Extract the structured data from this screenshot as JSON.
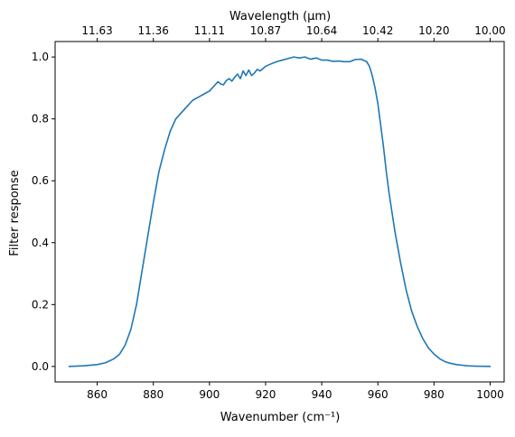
{
  "chart_data": {
    "type": "line",
    "title": "",
    "xlabel": "Wavenumber (cm⁻¹)",
    "ylabel": "Filter response",
    "top_axis_label": "Wavelength (μm)",
    "xlim": [
      845,
      1005
    ],
    "ylim": [
      -0.05,
      1.05
    ],
    "x_ticks": [
      860,
      880,
      900,
      920,
      940,
      960,
      980,
      1000
    ],
    "y_ticks": [
      0.0,
      0.2,
      0.4,
      0.6,
      0.8,
      1.0
    ],
    "top_ticks": [
      {
        "wavenumber": 860,
        "label": "11.63"
      },
      {
        "wavenumber": 880,
        "label": "11.36"
      },
      {
        "wavenumber": 900,
        "label": "11.11"
      },
      {
        "wavenumber": 920,
        "label": "10.87"
      },
      {
        "wavenumber": 940,
        "label": "10.64"
      },
      {
        "wavenumber": 960,
        "label": "10.42"
      },
      {
        "wavenumber": 980,
        "label": "10.20"
      },
      {
        "wavenumber": 1000,
        "label": "10.00"
      }
    ],
    "grid": false,
    "series": [
      {
        "color": "#1f77b4",
        "x": [
          850,
          855,
          860,
          863,
          866,
          868,
          870,
          872,
          874,
          876,
          878,
          880,
          882,
          884,
          886,
          888,
          890,
          892,
          894,
          896,
          898,
          900,
          902,
          903,
          904,
          905,
          906,
          907,
          908,
          909,
          910,
          911,
          912,
          913,
          914,
          915,
          916,
          917,
          918,
          919,
          920,
          922,
          924,
          926,
          928,
          930,
          932,
          934,
          936,
          938,
          940,
          942,
          944,
          946,
          948,
          950,
          952,
          954,
          956,
          957,
          958,
          959,
          960,
          961,
          962,
          963,
          964,
          966,
          968,
          970,
          972,
          974,
          976,
          978,
          980,
          982,
          984,
          986,
          988,
          990,
          992,
          995,
          1000
        ],
        "y": [
          0.0,
          0.002,
          0.006,
          0.012,
          0.025,
          0.04,
          0.07,
          0.12,
          0.2,
          0.31,
          0.42,
          0.53,
          0.63,
          0.7,
          0.76,
          0.8,
          0.82,
          0.84,
          0.86,
          0.87,
          0.88,
          0.89,
          0.91,
          0.92,
          0.913,
          0.91,
          0.924,
          0.93,
          0.922,
          0.935,
          0.945,
          0.93,
          0.955,
          0.94,
          0.958,
          0.94,
          0.948,
          0.96,
          0.955,
          0.962,
          0.97,
          0.978,
          0.985,
          0.99,
          0.995,
          1.0,
          0.997,
          1.0,
          0.993,
          0.997,
          0.99,
          0.99,
          0.986,
          0.987,
          0.985,
          0.985,
          0.992,
          0.993,
          0.985,
          0.97,
          0.94,
          0.9,
          0.85,
          0.78,
          0.71,
          0.63,
          0.56,
          0.44,
          0.34,
          0.25,
          0.18,
          0.13,
          0.09,
          0.06,
          0.04,
          0.025,
          0.015,
          0.01,
          0.006,
          0.004,
          0.002,
          0.001,
          0.0
        ]
      }
    ]
  }
}
